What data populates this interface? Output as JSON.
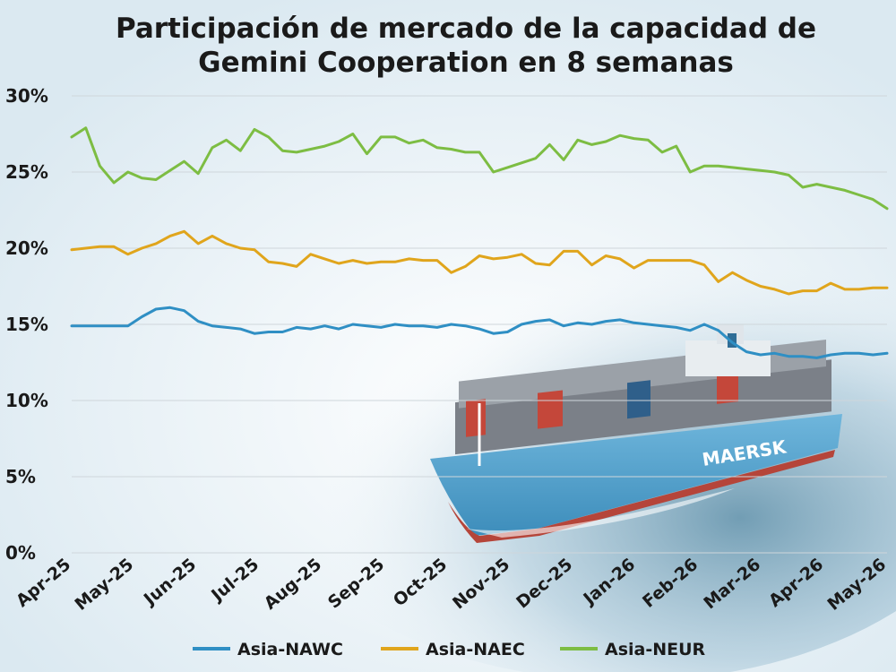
{
  "chart_data": {
    "type": "line",
    "title_lines": [
      "Participación de mercado de la capacidad de",
      "Gemini Cooperation en 8 semanas"
    ],
    "xlabel": "",
    "ylabel": "",
    "ylim": [
      0,
      30
    ],
    "y_ticks": [
      "0%",
      "5%",
      "10%",
      "15%",
      "20%",
      "25%",
      "30%"
    ],
    "y_tick_values": [
      0,
      5,
      10,
      15,
      20,
      25,
      30
    ],
    "x_ticks": [
      "Apr-25",
      "May-25",
      "Jun-25",
      "Jul-25",
      "Aug-25",
      "Sep-25",
      "Oct-25",
      "Nov-25",
      "Dec-25",
      "Jan-26",
      "Feb-26",
      "Mar-26",
      "Apr-26",
      "May-26"
    ],
    "grid": true,
    "legend_position": "bottom",
    "series": [
      {
        "name": "Asia-NAWC",
        "color": "#2f8fc4",
        "values": [
          14.9,
          14.9,
          14.9,
          14.9,
          14.9,
          15.5,
          16.0,
          16.1,
          15.9,
          15.2,
          14.9,
          14.8,
          14.7,
          14.4,
          14.5,
          14.5,
          14.8,
          14.7,
          14.9,
          14.7,
          15.0,
          14.9,
          14.8,
          15.0,
          14.9,
          14.9,
          14.8,
          15.0,
          14.9,
          14.7,
          14.4,
          14.5,
          15.0,
          15.2,
          15.3,
          14.9,
          15.1,
          15.0,
          15.2,
          15.3,
          15.1,
          15.0,
          14.9,
          14.8,
          14.6,
          15.0,
          14.6,
          13.8,
          13.2,
          13.0,
          13.1,
          12.9,
          12.9,
          12.8,
          13.0,
          13.1,
          13.1,
          13.0,
          13.1
        ]
      },
      {
        "name": "Asia-NAEC",
        "color": "#e0a51c",
        "values": [
          19.9,
          20.0,
          20.1,
          20.1,
          19.6,
          20.0,
          20.3,
          20.8,
          21.1,
          20.3,
          20.8,
          20.3,
          20.0,
          19.9,
          19.1,
          19.0,
          18.8,
          19.6,
          19.3,
          19.0,
          19.2,
          19.0,
          19.1,
          19.1,
          19.3,
          19.2,
          19.2,
          18.4,
          18.8,
          19.5,
          19.3,
          19.4,
          19.6,
          19.0,
          18.9,
          19.8,
          19.8,
          18.9,
          19.5,
          19.3,
          18.7,
          19.2,
          19.2,
          19.2,
          19.2,
          18.9,
          17.8,
          18.4,
          17.9,
          17.5,
          17.3,
          17.0,
          17.2,
          17.2,
          17.7,
          17.3,
          17.3,
          17.4,
          17.4
        ]
      },
      {
        "name": "Asia-NEUR",
        "color": "#7dbd43",
        "values": [
          27.3,
          27.9,
          25.4,
          24.3,
          25.0,
          24.6,
          24.5,
          25.1,
          25.7,
          24.9,
          26.6,
          27.1,
          26.4,
          27.8,
          27.3,
          26.4,
          26.3,
          26.5,
          26.7,
          27.0,
          27.5,
          26.2,
          27.3,
          27.3,
          26.9,
          27.1,
          26.6,
          26.5,
          26.3,
          26.3,
          25.0,
          25.3,
          25.6,
          25.9,
          26.8,
          25.8,
          27.1,
          26.8,
          27.0,
          27.4,
          27.2,
          27.1,
          26.3,
          26.7,
          25.0,
          25.4,
          25.4,
          25.3,
          25.2,
          25.1,
          25.0,
          24.8,
          24.0,
          24.2,
          24.0,
          23.8,
          23.5,
          23.2,
          22.6
        ]
      }
    ]
  }
}
